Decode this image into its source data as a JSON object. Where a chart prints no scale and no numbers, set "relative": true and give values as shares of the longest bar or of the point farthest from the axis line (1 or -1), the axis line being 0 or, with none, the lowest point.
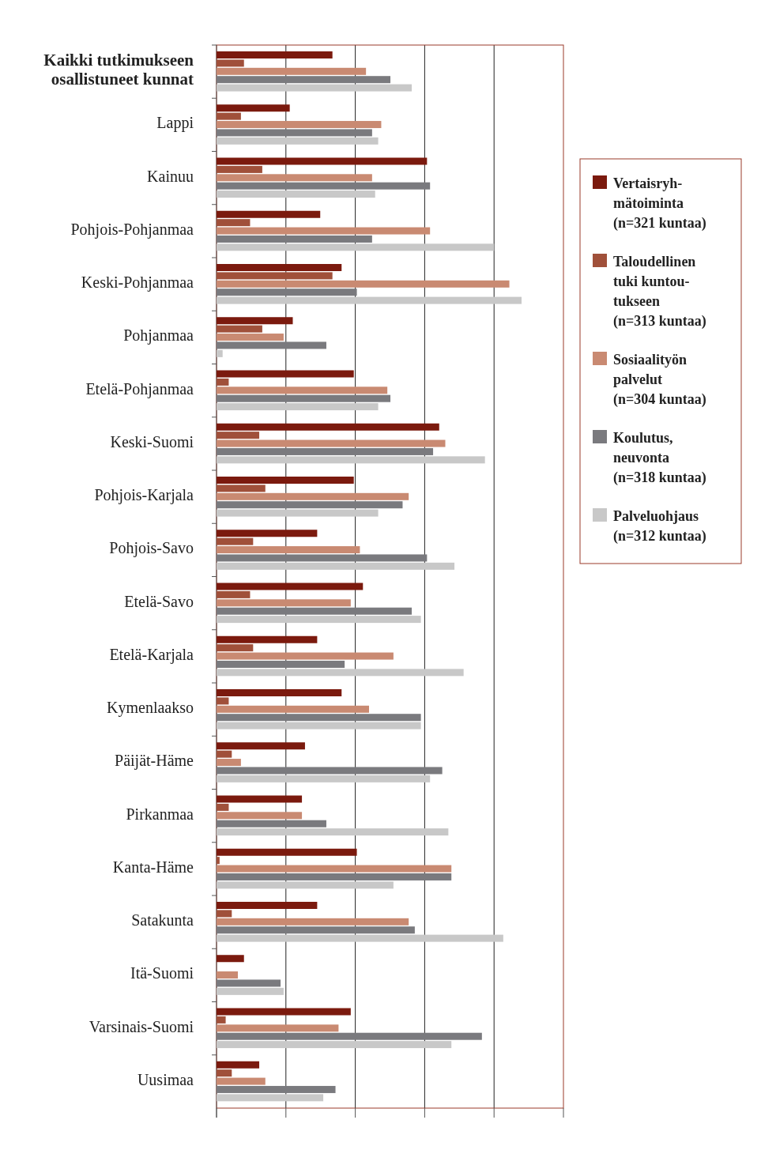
{
  "chart_data": {
    "type": "bar",
    "orientation": "horizontal",
    "relative": true,
    "grid": "x",
    "legend": "right",
    "categories": [
      "Kaikki tutkimukseen\nosallistuneet kunnat",
      "Lappi",
      "Kainuu",
      "Pohjois-Pohjanmaa",
      "Keski-Pohjanmaa",
      "Pohjanmaa",
      "Etelä-Pohjanmaa",
      "Keski-Suomi",
      "Pohjois-Karjala",
      "Pohjois-Savo",
      "Etelä-Savo",
      "Etelä-Karjala",
      "Kymenlaakso",
      "Päijät-Häme",
      "Pirkanmaa",
      "Kanta-Häme",
      "Satakunta",
      "Itä-Suomi",
      "Varsinais-Suomi",
      "Uusimaa"
    ],
    "series": [
      {
        "name": "Vertaisryh-\nmätoiminta\n(n=321 kuntaa)",
        "color": "#7b1a0e",
        "values": [
          0.38,
          0.24,
          0.69,
          0.34,
          0.41,
          0.25,
          0.45,
          0.73,
          0.45,
          0.33,
          0.48,
          0.33,
          0.41,
          0.29,
          0.28,
          0.46,
          0.33,
          0.09,
          0.44,
          0.14
        ]
      },
      {
        "name": "Taloudellinen\ntuki kuntou-\ntukseen\n(n=313 kuntaa)",
        "color": "#a0503a",
        "values": [
          0.09,
          0.08,
          0.15,
          0.11,
          0.38,
          0.15,
          0.04,
          0.14,
          0.16,
          0.12,
          0.11,
          0.12,
          0.04,
          0.05,
          0.04,
          0.01,
          0.05,
          0,
          0.03,
          0.05
        ]
      },
      {
        "name": "Sosiaalityön\npalvelut\n(n=304 kuntaa)",
        "color": "#c98a72",
        "values": [
          0.49,
          0.54,
          0.51,
          0.7,
          0.96,
          0.22,
          0.56,
          0.75,
          0.63,
          0.47,
          0.44,
          0.58,
          0.5,
          0.08,
          0.28,
          0.77,
          0.63,
          0.07,
          0.4,
          0.16
        ]
      },
      {
        "name": "Koulutus,\nneuvonta\n(n=318 kuntaa)",
        "color": "#7a7a7e",
        "values": [
          0.57,
          0.51,
          0.7,
          0.51,
          0.46,
          0.36,
          0.57,
          0.71,
          0.61,
          0.69,
          0.64,
          0.42,
          0.67,
          0.74,
          0.36,
          0.77,
          0.65,
          0.21,
          0.87,
          0.39
        ]
      },
      {
        "name": "Palveluohjaus\n(n=312 kuntaa)",
        "color": "#c8c8c8",
        "values": [
          0.64,
          0.53,
          0.52,
          0.91,
          1,
          0.02,
          0.53,
          0.88,
          0.53,
          0.78,
          0.67,
          0.81,
          0.67,
          0.7,
          0.76,
          0.58,
          0.94,
          0.22,
          0.77,
          0.35
        ]
      }
    ]
  }
}
